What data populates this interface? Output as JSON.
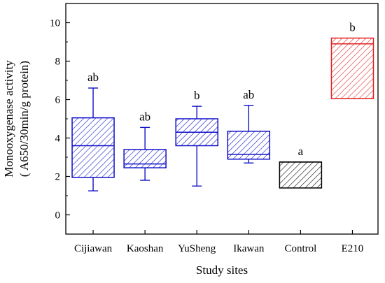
{
  "chart_data": {
    "type": "box",
    "xlabel": "Study sites",
    "ylabel_line1": "Monooxygenase activity",
    "ylabel_line2": "( A650/30min/g protein)",
    "ylim": [
      -1,
      11
    ],
    "yticks": [
      0,
      2,
      4,
      6,
      8,
      10
    ],
    "grid": false,
    "categories": [
      "Cijiawan",
      "Kaoshan",
      "YuSheng",
      "Ikawan",
      "Control",
      "E210"
    ],
    "boxes": [
      {
        "category": "Cijiawan",
        "min": 1.25,
        "q1": 1.95,
        "median": 3.6,
        "q3": 5.05,
        "max": 6.6,
        "letter": "ab",
        "color": "#1010c8"
      },
      {
        "category": "Kaoshan",
        "min": 1.8,
        "q1": 2.45,
        "median": 2.65,
        "q3": 3.4,
        "max": 4.55,
        "letter": "ab",
        "color": "#1010c8"
      },
      {
        "category": "YuSheng",
        "min": 1.5,
        "q1": 3.6,
        "median": 4.3,
        "q3": 5.0,
        "max": 5.65,
        "letter": "b",
        "color": "#1010c8"
      },
      {
        "category": "Ikawan",
        "min": 2.7,
        "q1": 2.9,
        "median": 3.15,
        "q3": 4.35,
        "max": 5.7,
        "letter": "ab",
        "color": "#1010c8"
      },
      {
        "category": "Control",
        "min": null,
        "q1": 1.4,
        "median": 2.75,
        "q3": 2.75,
        "max": null,
        "letter": "a",
        "color": "#000000"
      },
      {
        "category": "E210",
        "min": null,
        "q1": 6.05,
        "median": 8.9,
        "q3": 9.2,
        "max": null,
        "letter": "b",
        "color": "#e02020"
      }
    ]
  }
}
